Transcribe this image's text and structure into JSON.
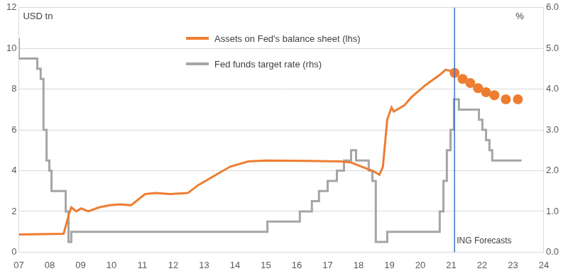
{
  "chart_data": {
    "type": "line",
    "ylabel": "USD tn",
    "y2label": "%",
    "xlim": [
      2007,
      2024
    ],
    "xticks": [
      {
        "value": 2007,
        "label": "07"
      },
      {
        "value": 2008,
        "label": "08"
      },
      {
        "value": 2009,
        "label": "09"
      },
      {
        "value": 2010,
        "label": "10"
      },
      {
        "value": 2011,
        "label": "11"
      },
      {
        "value": 2012,
        "label": "12"
      },
      {
        "value": 2013,
        "label": "13"
      },
      {
        "value": 2014,
        "label": "14"
      },
      {
        "value": 2015,
        "label": "15"
      },
      {
        "value": 2016,
        "label": "16"
      },
      {
        "value": 2017,
        "label": "17"
      },
      {
        "value": 2018,
        "label": "18"
      },
      {
        "value": 2019,
        "label": "19"
      },
      {
        "value": 2020,
        "label": "20"
      },
      {
        "value": 2021,
        "label": "21"
      },
      {
        "value": 2022,
        "label": "22"
      },
      {
        "value": 2023,
        "label": "23"
      },
      {
        "value": 2024,
        "label": "24"
      }
    ],
    "ylim": [
      0,
      12
    ],
    "yticks": [
      0,
      2,
      4,
      6,
      8,
      10,
      12
    ],
    "y2lim": [
      0,
      6
    ],
    "y2ticks": [
      {
        "value": 0,
        "label": "0.0"
      },
      {
        "value": 1,
        "label": "1.0"
      },
      {
        "value": 2,
        "label": "2.0"
      },
      {
        "value": 3,
        "label": "3.0"
      },
      {
        "value": 4,
        "label": "4.0"
      },
      {
        "value": 5,
        "label": "5.0"
      },
      {
        "value": 6,
        "label": "6.0"
      }
    ],
    "grid": true,
    "legend": "top",
    "annotations": [
      {
        "x": 2021.11,
        "text": "ING Forecasts",
        "color": "#4472c4"
      }
    ],
    "series": [
      {
        "name": "Assets on Fed's balance sheet (lhs)",
        "color": "#ed7d31",
        "axis": "y",
        "line_style": "solid",
        "marker": "circle",
        "x": [
          2007.0,
          2008.45,
          2008.56,
          2008.63,
          2008.7,
          2008.86,
          2009.02,
          2009.25,
          2009.6,
          2009.94,
          2010.29,
          2010.63,
          2011.09,
          2011.44,
          2011.9,
          2012.47,
          2012.82,
          2013.39,
          2013.85,
          2014.43,
          2015.0,
          2016.26,
          2017.41,
          2017.76,
          2018.1,
          2018.45,
          2018.68,
          2018.79,
          2018.93,
          2019.07,
          2019.14,
          2019.48,
          2019.71,
          2020.17,
          2020.63,
          2020.82,
          2020.98,
          2021.11,
          2021.37,
          2021.62,
          2021.87,
          2022.13,
          2022.4,
          2022.77,
          2023.16
        ],
        "values": [
          0.87,
          0.9,
          1.5,
          1.9,
          2.2,
          2.0,
          2.15,
          2.0,
          2.2,
          2.3,
          2.35,
          2.3,
          2.85,
          2.9,
          2.85,
          2.9,
          3.3,
          3.8,
          4.2,
          4.45,
          4.5,
          4.48,
          4.45,
          4.4,
          4.2,
          4.0,
          3.8,
          4.2,
          6.5,
          7.1,
          6.9,
          7.2,
          7.6,
          8.2,
          8.7,
          8.95,
          8.9,
          8.8,
          8.5,
          8.3,
          8.05,
          7.85,
          7.7,
          7.5,
          7.5
        ]
      },
      {
        "name": "Fed funds target rate (rhs)",
        "color": "#a5a5a5",
        "axis": "y2",
        "line_style": "step",
        "marker": "none",
        "x": [
          2007.0,
          2007.6,
          2007.71,
          2007.8,
          2007.9,
          2007.99,
          2008.06,
          2008.52,
          2008.61,
          2008.7,
          2015.05,
          2016.1,
          2016.49,
          2016.72,
          2017.0,
          2017.3,
          2017.53,
          2017.76,
          2017.92,
          2018.33,
          2018.45,
          2018.56,
          2018.93,
          2020.63,
          2020.75,
          2020.86,
          2020.98,
          2021.09,
          2021.25,
          2021.9,
          2022.01,
          2022.13,
          2022.24,
          2022.33,
          2022.43,
          2023.28
        ],
        "values": [
          5.25,
          4.75,
          4.5,
          4.25,
          3.0,
          2.25,
          2.0,
          1.5,
          1.0,
          0.25,
          0.5,
          0.75,
          1.0,
          1.25,
          1.5,
          1.75,
          2.0,
          2.25,
          2.5,
          2.25,
          2.0,
          1.75,
          0.25,
          0.5,
          1.0,
          1.75,
          2.5,
          3.0,
          3.75,
          3.5,
          3.25,
          3.0,
          2.75,
          2.5,
          2.25,
          2.25
        ]
      }
    ]
  }
}
